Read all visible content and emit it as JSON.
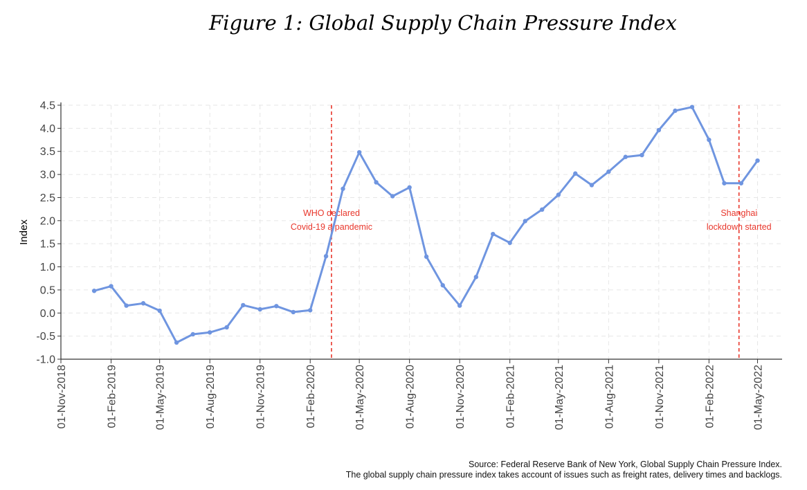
{
  "figure_title": "Figure 1: Global Supply Chain Pressure Index",
  "source_line1": "Source: Federal Reserve Bank of New York, Global Supply Chain Pressure Index.",
  "source_line2": "The global supply chain pressure index takes account of issues such as freight rates, delivery times and backlogs.",
  "chart_data": {
    "type": "line",
    "title": "Figure 1: Global Supply Chain Pressure Index",
    "xlabel": "",
    "ylabel": "Index",
    "ylim": [
      -1.0,
      4.5
    ],
    "yticks": [
      -1.0,
      -0.5,
      0.0,
      0.5,
      1.0,
      1.5,
      2.0,
      2.5,
      3.0,
      3.5,
      4.0,
      4.5
    ],
    "ytick_labels": [
      "-1.0",
      "-0.5",
      "0.0",
      "0.5",
      "1.0",
      "1.5",
      "2.0",
      "2.5",
      "3.0",
      "3.5",
      "4.0",
      "4.5"
    ],
    "xlim": [
      "2018-11-01",
      "2022-06-15"
    ],
    "xticks": [
      "2018-11-01",
      "2019-02-01",
      "2019-05-01",
      "2019-08-01",
      "2019-11-01",
      "2020-02-01",
      "2020-05-01",
      "2020-08-01",
      "2020-11-01",
      "2021-02-01",
      "2021-05-01",
      "2021-08-01",
      "2021-11-01",
      "2022-02-01",
      "2022-05-01"
    ],
    "xtick_labels": [
      "01-Nov-2018",
      "01-Feb-2019",
      "01-May-2019",
      "01-Aug-2019",
      "01-Nov-2019",
      "01-Feb-2020",
      "01-May-2020",
      "01-Aug-2020",
      "01-Nov-2020",
      "01-Feb-2021",
      "01-May-2021",
      "01-Aug-2021",
      "01-Nov-2021",
      "01-Feb-2022",
      "01-May-2022"
    ],
    "grid": true,
    "series_color": "#6f95e0",
    "annotation_color": "#e8362b",
    "series": [
      {
        "x": [
          "2019-01-01",
          "2019-02-01",
          "2019-03-01",
          "2019-04-01",
          "2019-05-01",
          "2019-06-01",
          "2019-07-01",
          "2019-08-01",
          "2019-09-01",
          "2019-10-01",
          "2019-11-01",
          "2019-12-01",
          "2020-01-01",
          "2020-02-01",
          "2020-03-01",
          "2020-04-01",
          "2020-05-01",
          "2020-06-01",
          "2020-07-01",
          "2020-08-01",
          "2020-09-01",
          "2020-10-01",
          "2020-11-01",
          "2020-12-01",
          "2021-01-01",
          "2021-02-01",
          "2021-03-01",
          "2021-04-01",
          "2021-05-01",
          "2021-06-01",
          "2021-07-01",
          "2021-08-01",
          "2021-09-01",
          "2021-10-01",
          "2021-11-01",
          "2021-12-01",
          "2022-01-01",
          "2022-02-01",
          "2022-03-01",
          "2022-04-01",
          "2022-05-01"
        ],
        "y": [
          0.48,
          0.58,
          0.16,
          0.21,
          0.05,
          -0.64,
          -0.46,
          -0.42,
          -0.31,
          0.17,
          0.08,
          0.15,
          0.02,
          0.06,
          1.23,
          2.69,
          3.48,
          2.83,
          2.53,
          2.72,
          1.22,
          0.6,
          0.16,
          0.78,
          1.71,
          1.52,
          1.99,
          2.24,
          2.56,
          3.02,
          2.77,
          3.06,
          3.38,
          3.42,
          3.96,
          4.38,
          4.46,
          3.75,
          2.81,
          2.81,
          3.3
        ]
      }
    ],
    "vlines": [
      {
        "x": "2020-03-11",
        "label_line1": "WHO declared",
        "label_line2": "Covid-19 a pandemic"
      },
      {
        "x": "2022-03-28",
        "label_line1": "Shanghai",
        "label_line2": "lockdown started"
      }
    ]
  }
}
